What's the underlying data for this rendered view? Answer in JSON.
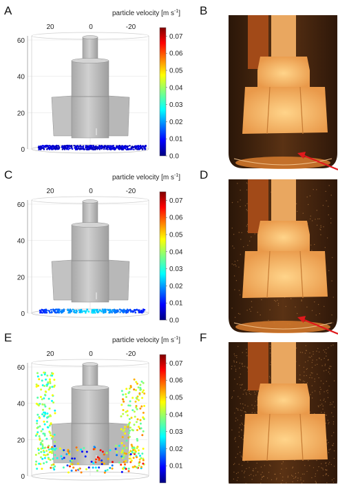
{
  "panels": [
    {
      "letter": "A",
      "side": "simulation",
      "row": 0,
      "state": "settled"
    },
    {
      "letter": "B",
      "side": "photo",
      "row": 0,
      "state": "settled",
      "arrow": true
    },
    {
      "letter": "C",
      "side": "simulation",
      "row": 1,
      "state": "partial"
    },
    {
      "letter": "D",
      "side": "photo",
      "row": 1,
      "state": "partial",
      "arrow": true
    },
    {
      "letter": "E",
      "side": "simulation",
      "row": 2,
      "state": "suspended"
    },
    {
      "letter": "F",
      "side": "photo",
      "row": 2,
      "state": "suspended",
      "arrow": false
    }
  ],
  "sim": {
    "colorbar_title": "particle velocity [m s",
    "colorbar_title_sup": "-1",
    "colorbar_title_end": "]",
    "colorbar_ticks_full": [
      "0.07",
      "0.06",
      "0.05",
      "0.04",
      "0.03",
      "0.02",
      "0.01",
      "0.0"
    ],
    "colorbar_ticks_no_zero": [
      "0.07",
      "0.06",
      "0.05",
      "0.04",
      "0.03",
      "0.02",
      "0.01"
    ],
    "y_ticks": [
      "60",
      "40",
      "20",
      "0"
    ],
    "x_ticks": [
      "20",
      "0",
      "-20"
    ]
  },
  "colors": {
    "impeller": "#c4c4c4",
    "impeller_dark": "#9a9a9a",
    "photo_bg": "#3a2010",
    "photo_liquid": "#a0581f",
    "impeller_photo": "#f7c073",
    "arrow": "#e0191c"
  }
}
